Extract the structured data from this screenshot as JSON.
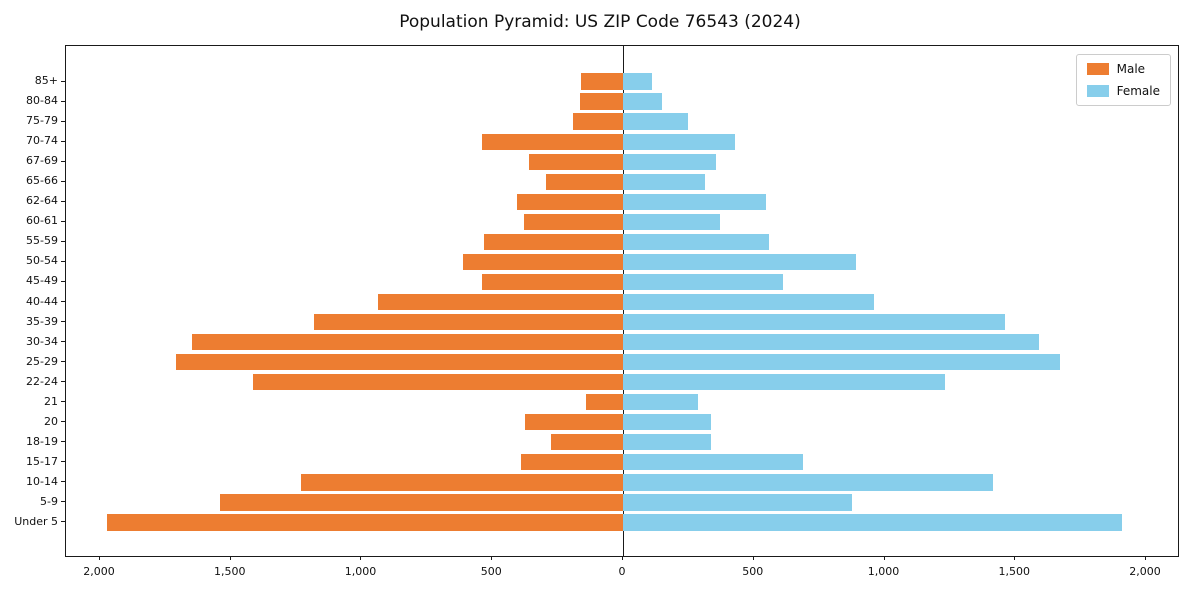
{
  "title": "Population Pyramid: US ZIP Code 76543 (2024)",
  "legend": {
    "male_label": "Male",
    "female_label": "Female"
  },
  "colors": {
    "male": "#ED7D31",
    "female": "#87CEEB",
    "axis": "#1a1a1a"
  },
  "chart_data": {
    "type": "bar",
    "subtype": "population-pyramid",
    "orientation": "horizontal",
    "title": "Population Pyramid: US ZIP Code 76543 (2024)",
    "categories_top_to_bottom": [
      "85+",
      "80-84",
      "75-79",
      "70-74",
      "67-69",
      "65-66",
      "62-64",
      "60-61",
      "55-59",
      "50-54",
      "45-49",
      "40-44",
      "35-39",
      "30-34",
      "25-29",
      "22-24",
      "21",
      "20",
      "18-19",
      "15-17",
      "10-14",
      "5-9",
      "Under 5"
    ],
    "series": [
      {
        "name": "Male",
        "side": "left",
        "values": [
          160,
          165,
          190,
          540,
          360,
          295,
          405,
          380,
          530,
          610,
          540,
          935,
          1180,
          1650,
          1710,
          1415,
          140,
          375,
          275,
          390,
          1230,
          1540,
          1975
        ]
      },
      {
        "name": "Female",
        "side": "right",
        "values": [
          110,
          150,
          250,
          430,
          355,
          315,
          545,
          370,
          560,
          890,
          610,
          960,
          1460,
          1590,
          1670,
          1230,
          285,
          335,
          335,
          690,
          1415,
          875,
          1910
        ]
      }
    ],
    "x_tick_values": [
      -2000,
      -1500,
      -1000,
      -500,
      0,
      500,
      1000,
      1500,
      2000
    ],
    "x_tick_labels": [
      "2,000",
      "1,500",
      "1,000",
      "500",
      "0",
      "500",
      "1,000",
      "1,500",
      "2,000"
    ],
    "xlim": [
      -2130,
      2130
    ],
    "grid": false,
    "legend_position": "upper right"
  }
}
